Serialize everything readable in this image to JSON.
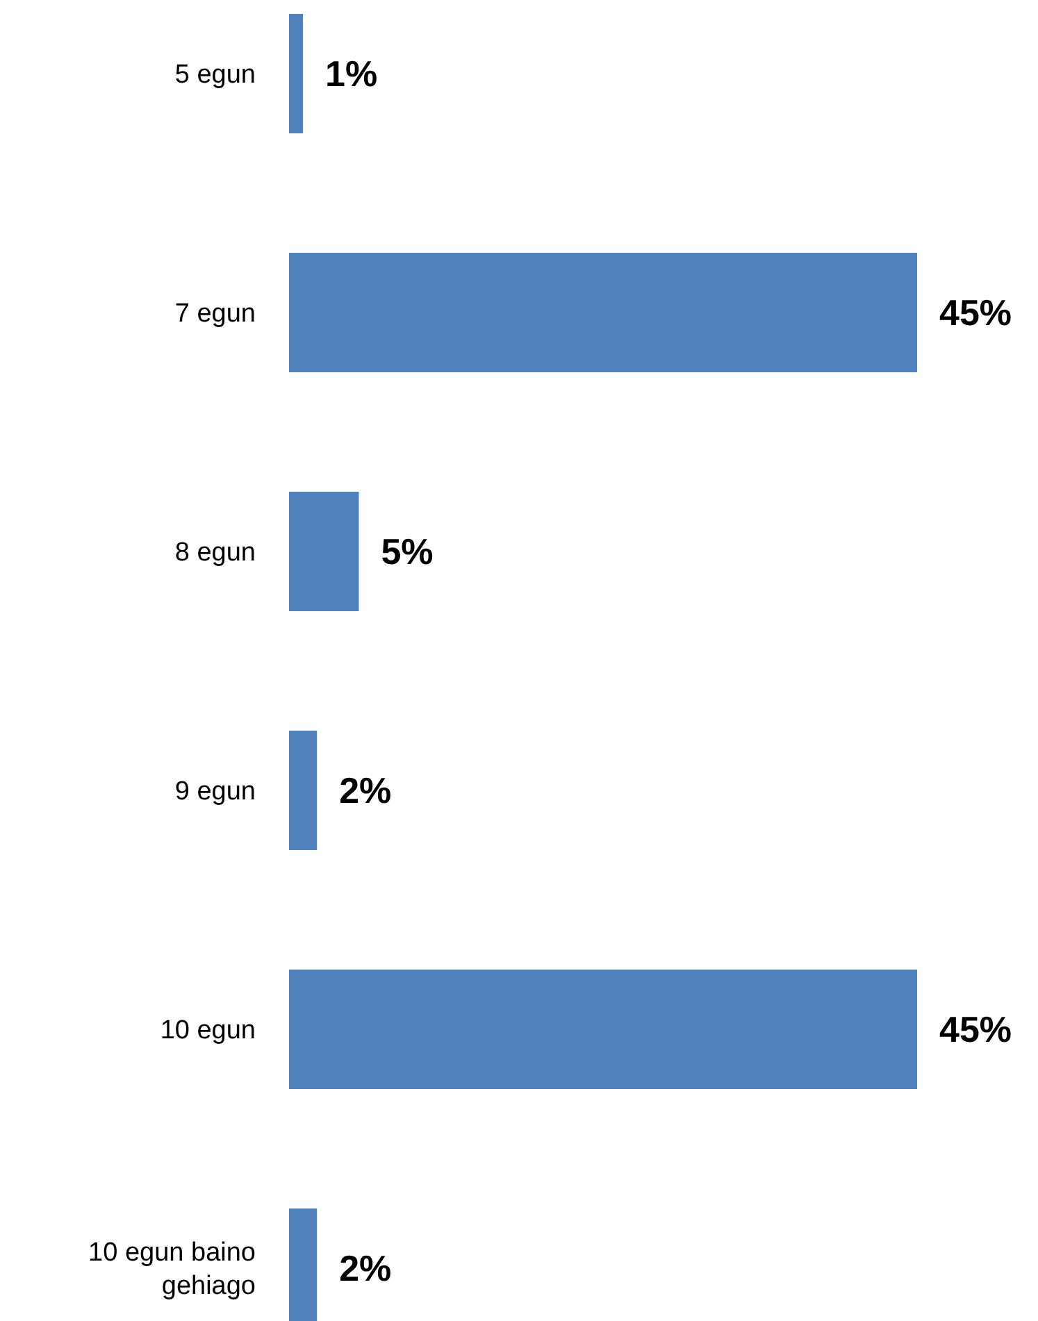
{
  "chart_data": {
    "type": "bar",
    "orientation": "horizontal",
    "categories": [
      "5 egun",
      "7 egun",
      "8 egun",
      "9 egun",
      "10 egun",
      "10 egun baino gehiago"
    ],
    "values": [
      1,
      45,
      5,
      2,
      45,
      2
    ],
    "value_labels": [
      "1%",
      "45%",
      "5%",
      "2%",
      "45%",
      "2%"
    ],
    "color": "#4f81bd"
  }
}
